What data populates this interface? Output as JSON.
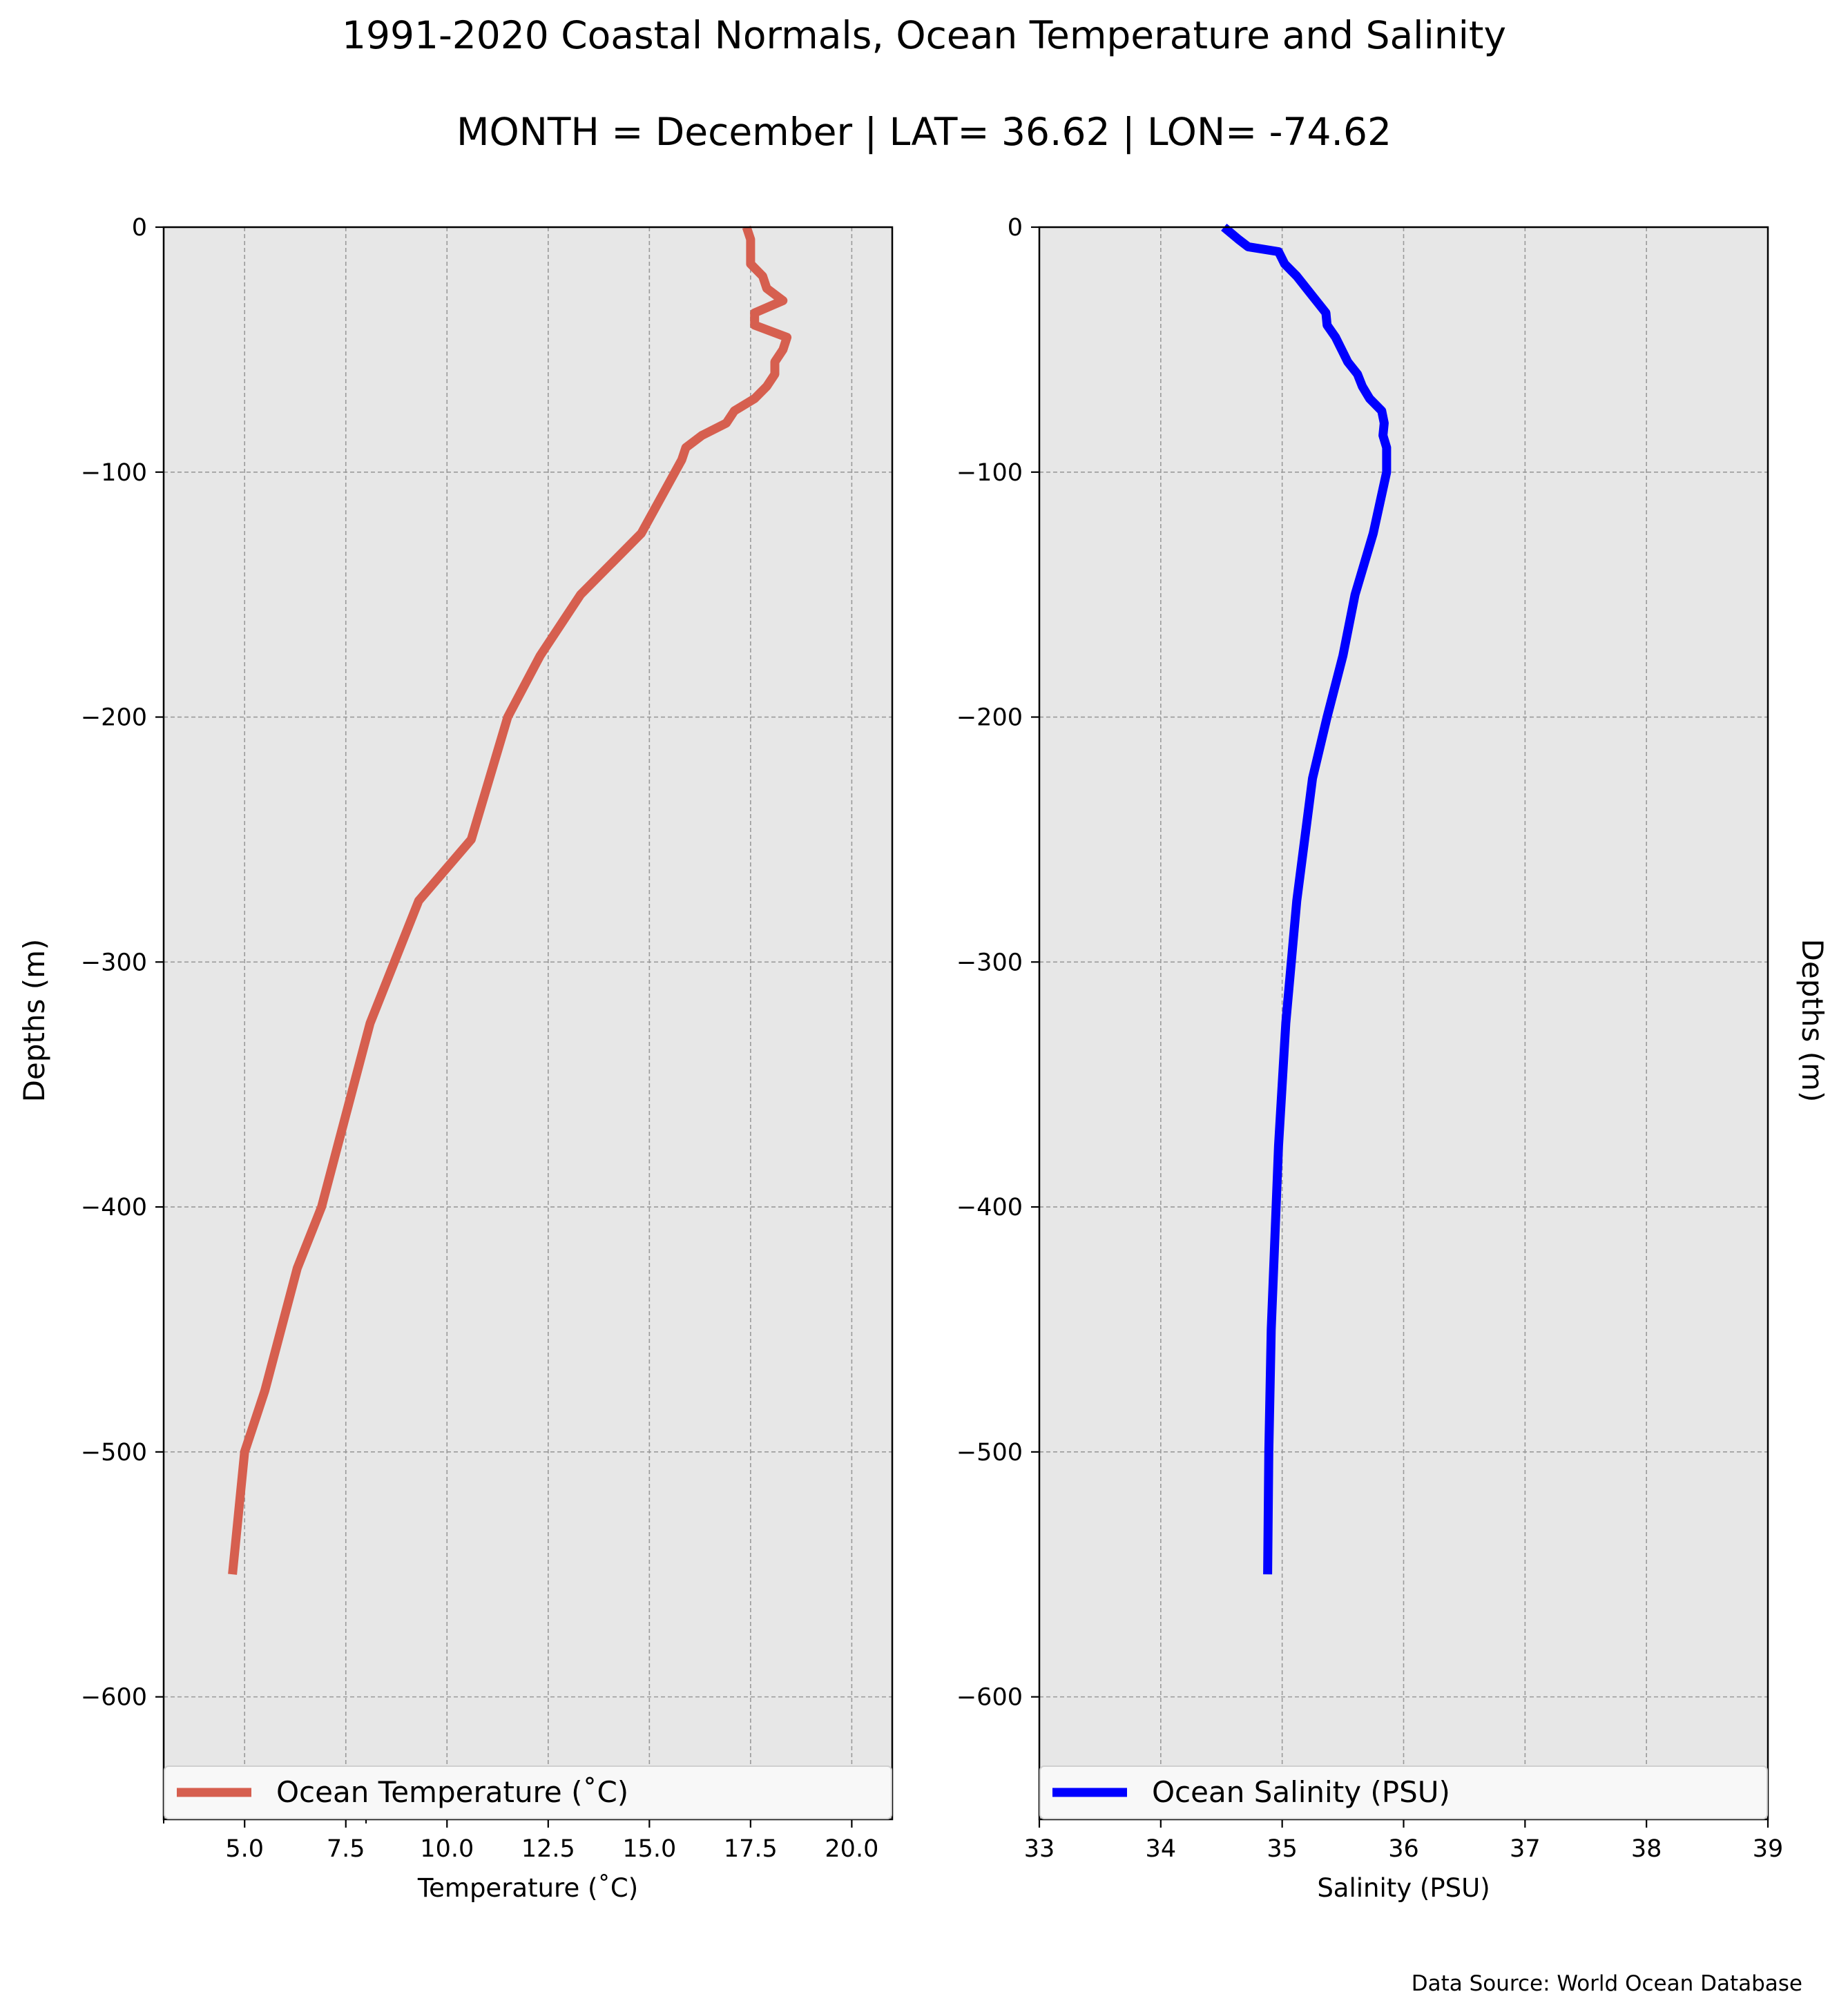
{
  "figure": {
    "title": "1991-2020 Coastal Normals, Ocean Temperature and Salinity",
    "subtitle": "MONTH = December | LAT= 36.62 | LON= -74.62",
    "source": "Data Source: World Ocean Database"
  },
  "chart_data": [
    {
      "type": "line",
      "xlabel": "Temperature (˚C)",
      "ylabel": "Depths (m)",
      "xlim": [
        3,
        21
      ],
      "ylim": [
        -650,
        0
      ],
      "xticks": [
        5.0,
        7.5,
        10.0,
        12.5,
        15.0,
        17.5,
        20.0
      ],
      "xtick_labels": [
        "5.0",
        "7.5",
        "10.0",
        "12.5",
        "15.0",
        "17.5",
        "20.0"
      ],
      "yticks": [
        0,
        -100,
        -200,
        -300,
        -400,
        -500,
        -600
      ],
      "ytick_labels": [
        "0",
        "−100",
        "−200",
        "−300",
        "−400",
        "−500",
        "−600"
      ],
      "grid": true,
      "legend_position": "bottom",
      "color": "#d65f4f",
      "series": [
        {
          "name": "Ocean Temperature (˚C)",
          "x": [
            17.4,
            17.5,
            17.5,
            17.8,
            17.9,
            18.3,
            17.6,
            17.6,
            18.4,
            18.3,
            18.1,
            18.1,
            17.9,
            17.6,
            17.1,
            16.9,
            16.3,
            15.9,
            15.8,
            14.8,
            13.3,
            12.3,
            11.5,
            10.6,
            9.3,
            8.1,
            7.3,
            6.9,
            6.3,
            5.5,
            5.0,
            4.7
          ],
          "y": [
            0,
            -5,
            -15,
            -20,
            -25,
            -30,
            -35,
            -40,
            -45,
            -50,
            -55,
            -60,
            -65,
            -70,
            -75,
            -80,
            -85,
            -90,
            -95,
            -125,
            -150,
            -175,
            -200,
            -250,
            -275,
            -325,
            -375,
            -400,
            -425,
            -475,
            -500,
            -550
          ]
        }
      ]
    },
    {
      "type": "line",
      "xlabel": "Salinity (PSU)",
      "ylabel": "Depths (m)",
      "xlim": [
        33,
        39
      ],
      "ylim": [
        -650,
        0
      ],
      "xticks": [
        33,
        34,
        35,
        36,
        37,
        38,
        39
      ],
      "xtick_labels": [
        "33",
        "34",
        "35",
        "36",
        "37",
        "38",
        "39"
      ],
      "yticks": [
        0,
        -100,
        -200,
        -300,
        -400,
        -500,
        -600
      ],
      "ytick_labels": [
        "0",
        "−100",
        "−200",
        "−300",
        "−400",
        "−500",
        "−600"
      ],
      "grid": true,
      "legend_position": "bottom",
      "color": "#0000ff",
      "series": [
        {
          "name": "Ocean Salinity (PSU)",
          "x": [
            34.52,
            34.64,
            34.72,
            34.97,
            35.02,
            35.12,
            35.2,
            35.28,
            35.36,
            35.37,
            35.44,
            35.49,
            35.54,
            35.62,
            35.66,
            35.72,
            35.82,
            35.84,
            35.83,
            35.86,
            35.86,
            35.75,
            35.6,
            35.5,
            35.37,
            35.25,
            35.12,
            35.03,
            34.97,
            34.91,
            34.89,
            34.88
          ],
          "y": [
            0,
            -5,
            -8,
            -10,
            -15,
            -20,
            -25,
            -30,
            -35,
            -40,
            -45,
            -50,
            -55,
            -60,
            -65,
            -70,
            -75,
            -80,
            -85,
            -90,
            -100,
            -125,
            -150,
            -175,
            -200,
            -225,
            -275,
            -325,
            -375,
            -450,
            -500,
            -550
          ]
        }
      ]
    }
  ]
}
